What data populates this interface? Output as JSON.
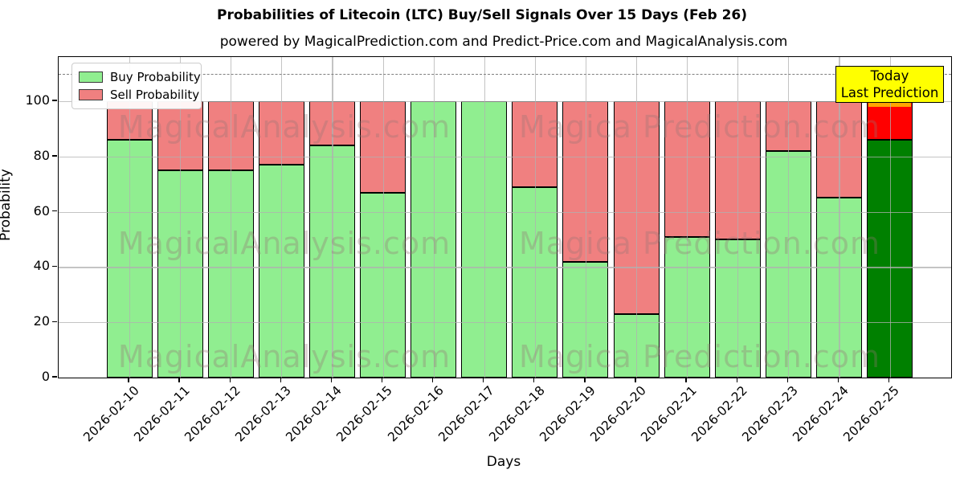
{
  "title": "Probabilities of Litecoin (LTC) Buy/Sell Signals Over 15 Days (Feb 26)",
  "subtitle": "powered by MagicalPrediction.com and Predict-Price.com and MagicalAnalysis.com",
  "legend": {
    "buy_label": "Buy Probability",
    "sell_label": "Sell Probability"
  },
  "annotation": {
    "line1": "Today",
    "line2": "Last Prediction",
    "background": "#ffff00"
  },
  "watermarks": {
    "left_text": "MagicalAnalysis.com",
    "right_text": "Magica Prediction.com"
  },
  "axes": {
    "xlabel": "Days",
    "ylabel": "Probability",
    "yticks": [
      0,
      20,
      40,
      60,
      80,
      100
    ]
  },
  "colors": {
    "buy": "#90EE90",
    "sell": "#F08080",
    "today_buy": "#008000",
    "today_sell": "#FF0000",
    "today_cap": "#FFA500",
    "grid": "#b0b0b0",
    "dashed_line": "#7f7f7f",
    "bar_edge": "#000000"
  },
  "chart_data": {
    "type": "bar",
    "stacked": true,
    "title": "Probabilities of Litecoin (LTC) Buy/Sell Signals Over 15 Days (Feb 26)",
    "xlabel": "Days",
    "ylabel": "Probability",
    "ylim": [
      0,
      116
    ],
    "grid": true,
    "legend_position": "upper-left",
    "dashed_line_y": 110,
    "categories": [
      "2026-02-10",
      "2026-02-11",
      "2026-02-12",
      "2026-02-13",
      "2026-02-14",
      "2026-02-15",
      "2026-02-16",
      "2026-02-17",
      "2026-02-18",
      "2026-02-19",
      "2026-02-20",
      "2026-02-21",
      "2026-02-22",
      "2026-02-23",
      "2026-02-24",
      "2026-02-25"
    ],
    "series": [
      {
        "name": "Buy Probability",
        "values": [
          86,
          75,
          75,
          77,
          84,
          67,
          100,
          100,
          69,
          42,
          23,
          51,
          50,
          82,
          65,
          86
        ]
      },
      {
        "name": "Sell Probability",
        "values": [
          14,
          25,
          25,
          23,
          16,
          33,
          0,
          0,
          31,
          58,
          77,
          49,
          50,
          18,
          35,
          14
        ]
      }
    ],
    "today_index": 15
  }
}
